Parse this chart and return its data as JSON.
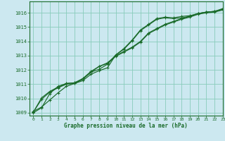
{
  "xlabel": "Graphe pression niveau de la mer (hPa)",
  "bg_color": "#cce8f0",
  "grid_color": "#88ccbb",
  "line_color": "#1a6b2a",
  "xlim": [
    -0.5,
    23
  ],
  "ylim": [
    1008.8,
    1016.8
  ],
  "xticks": [
    0,
    1,
    2,
    3,
    4,
    5,
    6,
    7,
    8,
    9,
    10,
    11,
    12,
    13,
    14,
    15,
    16,
    17,
    18,
    19,
    20,
    21,
    22,
    23
  ],
  "yticks": [
    1009,
    1010,
    1011,
    1012,
    1013,
    1014,
    1015,
    1016
  ],
  "curves": [
    [
      1009.1,
      1009.4,
      1009.9,
      1010.4,
      1010.85,
      1011.05,
      1011.25,
      1011.7,
      1011.95,
      1012.15,
      1013.05,
      1013.45,
      1014.05,
      1014.75,
      1015.15,
      1015.55,
      1015.65,
      1015.6,
      1015.65,
      1015.75,
      1015.95,
      1016.05,
      1016.1,
      1016.25
    ],
    [
      1009.05,
      1009.95,
      1010.45,
      1010.75,
      1011.0,
      1011.05,
      1011.35,
      1011.85,
      1012.25,
      1012.45,
      1012.95,
      1013.25,
      1013.55,
      1013.95,
      1014.55,
      1014.85,
      1015.15,
      1015.35,
      1015.55,
      1015.7,
      1015.9,
      1016.0,
      1016.05,
      1016.2
    ],
    [
      1009.05,
      1010.05,
      1010.5,
      1010.8,
      1011.05,
      1011.1,
      1011.4,
      1011.9,
      1012.25,
      1012.5,
      1013.0,
      1013.3,
      1013.6,
      1014.0,
      1014.6,
      1014.9,
      1015.2,
      1015.4,
      1015.6,
      1015.75,
      1015.95,
      1016.05,
      1016.1,
      1016.25
    ],
    [
      1009.0,
      1009.35,
      1010.35,
      1010.85,
      1011.05,
      1011.1,
      1011.35,
      1011.85,
      1012.05,
      1012.4,
      1013.05,
      1013.5,
      1014.1,
      1014.8,
      1015.2,
      1015.6,
      1015.7,
      1015.65,
      1015.75,
      1015.8,
      1015.95,
      1016.05,
      1016.1,
      1016.3
    ]
  ]
}
